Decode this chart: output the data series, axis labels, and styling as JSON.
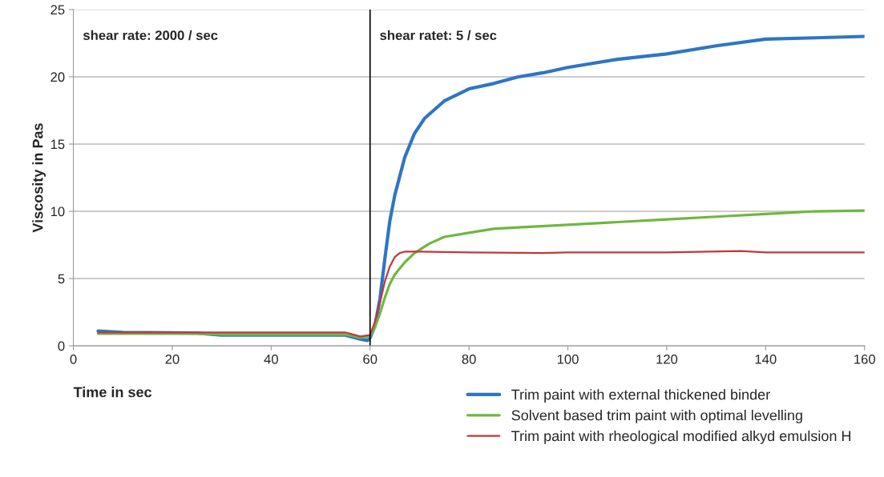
{
  "chart_data": {
    "type": "line",
    "xlabel": "Time in sec",
    "ylabel": "Viscosity in Pas",
    "xlim": [
      0,
      160
    ],
    "xticks": [
      0,
      20,
      40,
      60,
      80,
      100,
      120,
      140,
      160
    ],
    "ylim": [
      0,
      25
    ],
    "yticks": [
      0,
      5,
      10,
      15,
      20,
      25
    ],
    "grid": "y",
    "legend": "bottom right",
    "series": [
      {
        "name": "Trim paint with external thickened binder",
        "color": "#2e75c6",
        "x": [
          5,
          10,
          25,
          30,
          55,
          58,
          59.5,
          60,
          61,
          62,
          63,
          64,
          65,
          67,
          69,
          71,
          75,
          80,
          85,
          90,
          95,
          100,
          110,
          120,
          130,
          140,
          150,
          160
        ],
        "values": [
          1.1,
          1.0,
          0.95,
          0.8,
          0.8,
          0.5,
          0.4,
          0.6,
          1.5,
          3.5,
          6.5,
          9.3,
          11.2,
          14.0,
          15.8,
          16.9,
          18.2,
          19.1,
          19.5,
          20.0,
          20.3,
          20.7,
          21.3,
          21.7,
          22.3,
          22.8,
          22.9,
          23.0
        ]
      },
      {
        "name": "Solvent based trim paint with optimal levelling",
        "color": "#70b640",
        "x": [
          5,
          25,
          30,
          55,
          58,
          60,
          61,
          62,
          63,
          64,
          65,
          67,
          69,
          72,
          75,
          80,
          85,
          90,
          100,
          110,
          120,
          130,
          140,
          150,
          160
        ],
        "values": [
          0.9,
          0.9,
          0.85,
          0.85,
          0.6,
          0.7,
          1.4,
          2.4,
          3.6,
          4.6,
          5.3,
          6.2,
          6.9,
          7.6,
          8.1,
          8.4,
          8.7,
          8.8,
          9.0,
          9.2,
          9.4,
          9.6,
          9.8,
          10.0,
          10.05
        ]
      },
      {
        "name": "Trim paint with rheological modified alkyd emulsion H",
        "color": "#c0383d",
        "x": [
          5,
          55,
          58,
          60,
          61,
          62,
          63,
          64,
          65,
          66,
          67,
          70,
          80,
          95,
          100,
          120,
          135,
          140,
          160
        ],
        "values": [
          1.0,
          1.0,
          0.7,
          0.8,
          1.8,
          3.2,
          4.8,
          5.9,
          6.6,
          6.9,
          7.0,
          7.0,
          6.95,
          6.9,
          6.95,
          6.95,
          7.05,
          6.95,
          6.95
        ]
      }
    ],
    "ref_lines": [
      {
        "axis": "x",
        "value": 60,
        "color": "#000000"
      }
    ],
    "annotations": [
      "shear rate: 2000 / sec",
      "shear ratet: 5 / sec"
    ]
  }
}
